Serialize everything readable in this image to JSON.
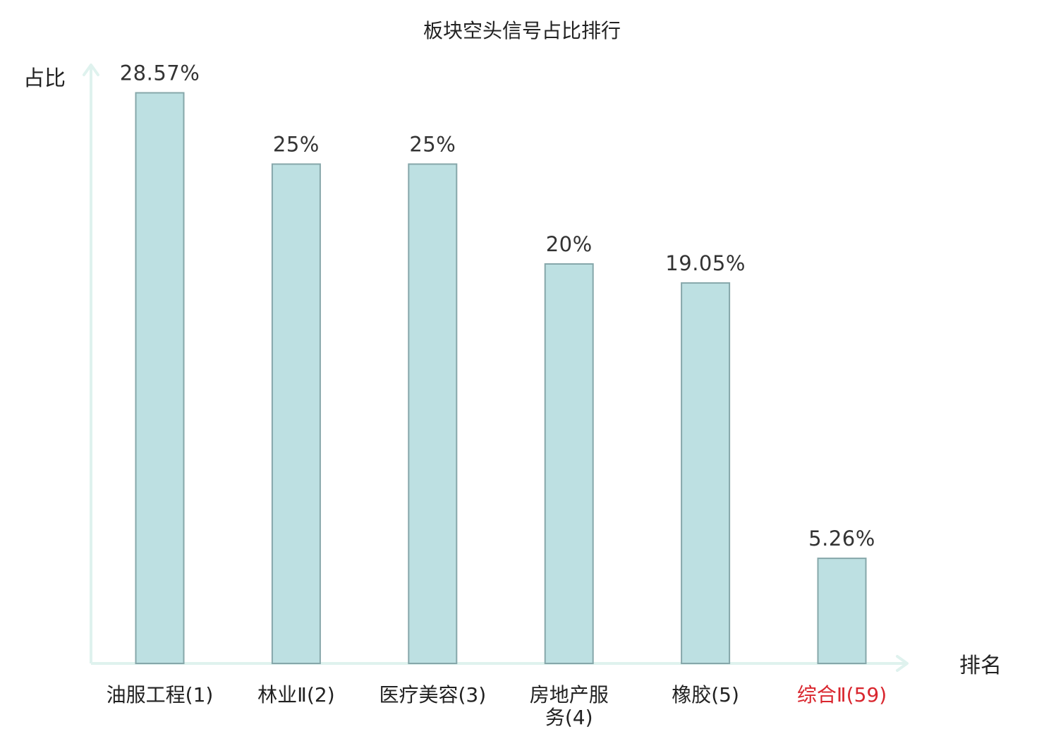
{
  "chart_data": {
    "type": "bar",
    "title": "板块空头信号占比排行",
    "ylabel": "占比",
    "xlabel": "排名",
    "categories": [
      "油服工程(1)",
      "林业Ⅱ(2)",
      "医疗美容(3)",
      "房地产服务(4)",
      "橡胶(5)",
      "综合Ⅱ(59)"
    ],
    "category_lines": [
      [
        "油服工程(1)"
      ],
      [
        "林业Ⅱ(2)"
      ],
      [
        "医疗美容(3)"
      ],
      [
        "房地产服",
        "务(4)"
      ],
      [
        "橡胶(5)"
      ],
      [
        "综合Ⅱ(59)"
      ]
    ],
    "values": [
      28.57,
      25,
      25,
      20,
      19.05,
      5.26
    ],
    "value_labels": [
      "28.57%",
      "25%",
      "25%",
      "20%",
      "19.05%",
      "5.26%"
    ],
    "highlight_index": 5,
    "ylim": [
      0,
      30
    ],
    "grid": false,
    "legend": "none",
    "colors": {
      "bar_fill": "#bde0e2",
      "bar_stroke": "#86a7aa",
      "axis": "#dff2ee",
      "highlight_text": "#d9262e",
      "text": "#222222"
    }
  }
}
